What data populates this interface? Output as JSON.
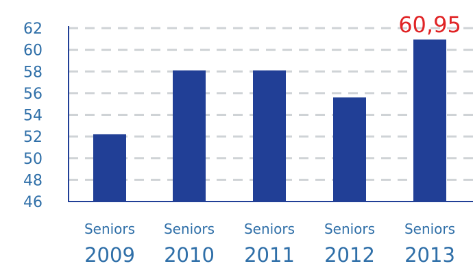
{
  "chart_data": {
    "type": "bar",
    "categories": [
      {
        "line1": "Seniors",
        "line2": "2009"
      },
      {
        "line1": "Seniors",
        "line2": "2010"
      },
      {
        "line1": "Seniors",
        "line2": "2011"
      },
      {
        "line1": "Seniors",
        "line2": "2012"
      },
      {
        "line1": "Seniors",
        "line2": "2013"
      }
    ],
    "values": [
      52.2,
      58.1,
      58.1,
      55.6,
      60.95
    ],
    "yticks": [
      "46",
      "48",
      "50",
      "52",
      "54",
      "56",
      "58",
      "60",
      "62"
    ],
    "ylim": [
      46,
      62
    ],
    "grid": true,
    "data_label": {
      "index": 4,
      "text": "60,95"
    },
    "colors": {
      "bar": "#213f96",
      "axis": "#213f96",
      "tick_text": "#2f6fa8",
      "category_text": "#2f6fa8",
      "grid": "#cfd3d6",
      "highlight_label": "#e02426"
    }
  }
}
